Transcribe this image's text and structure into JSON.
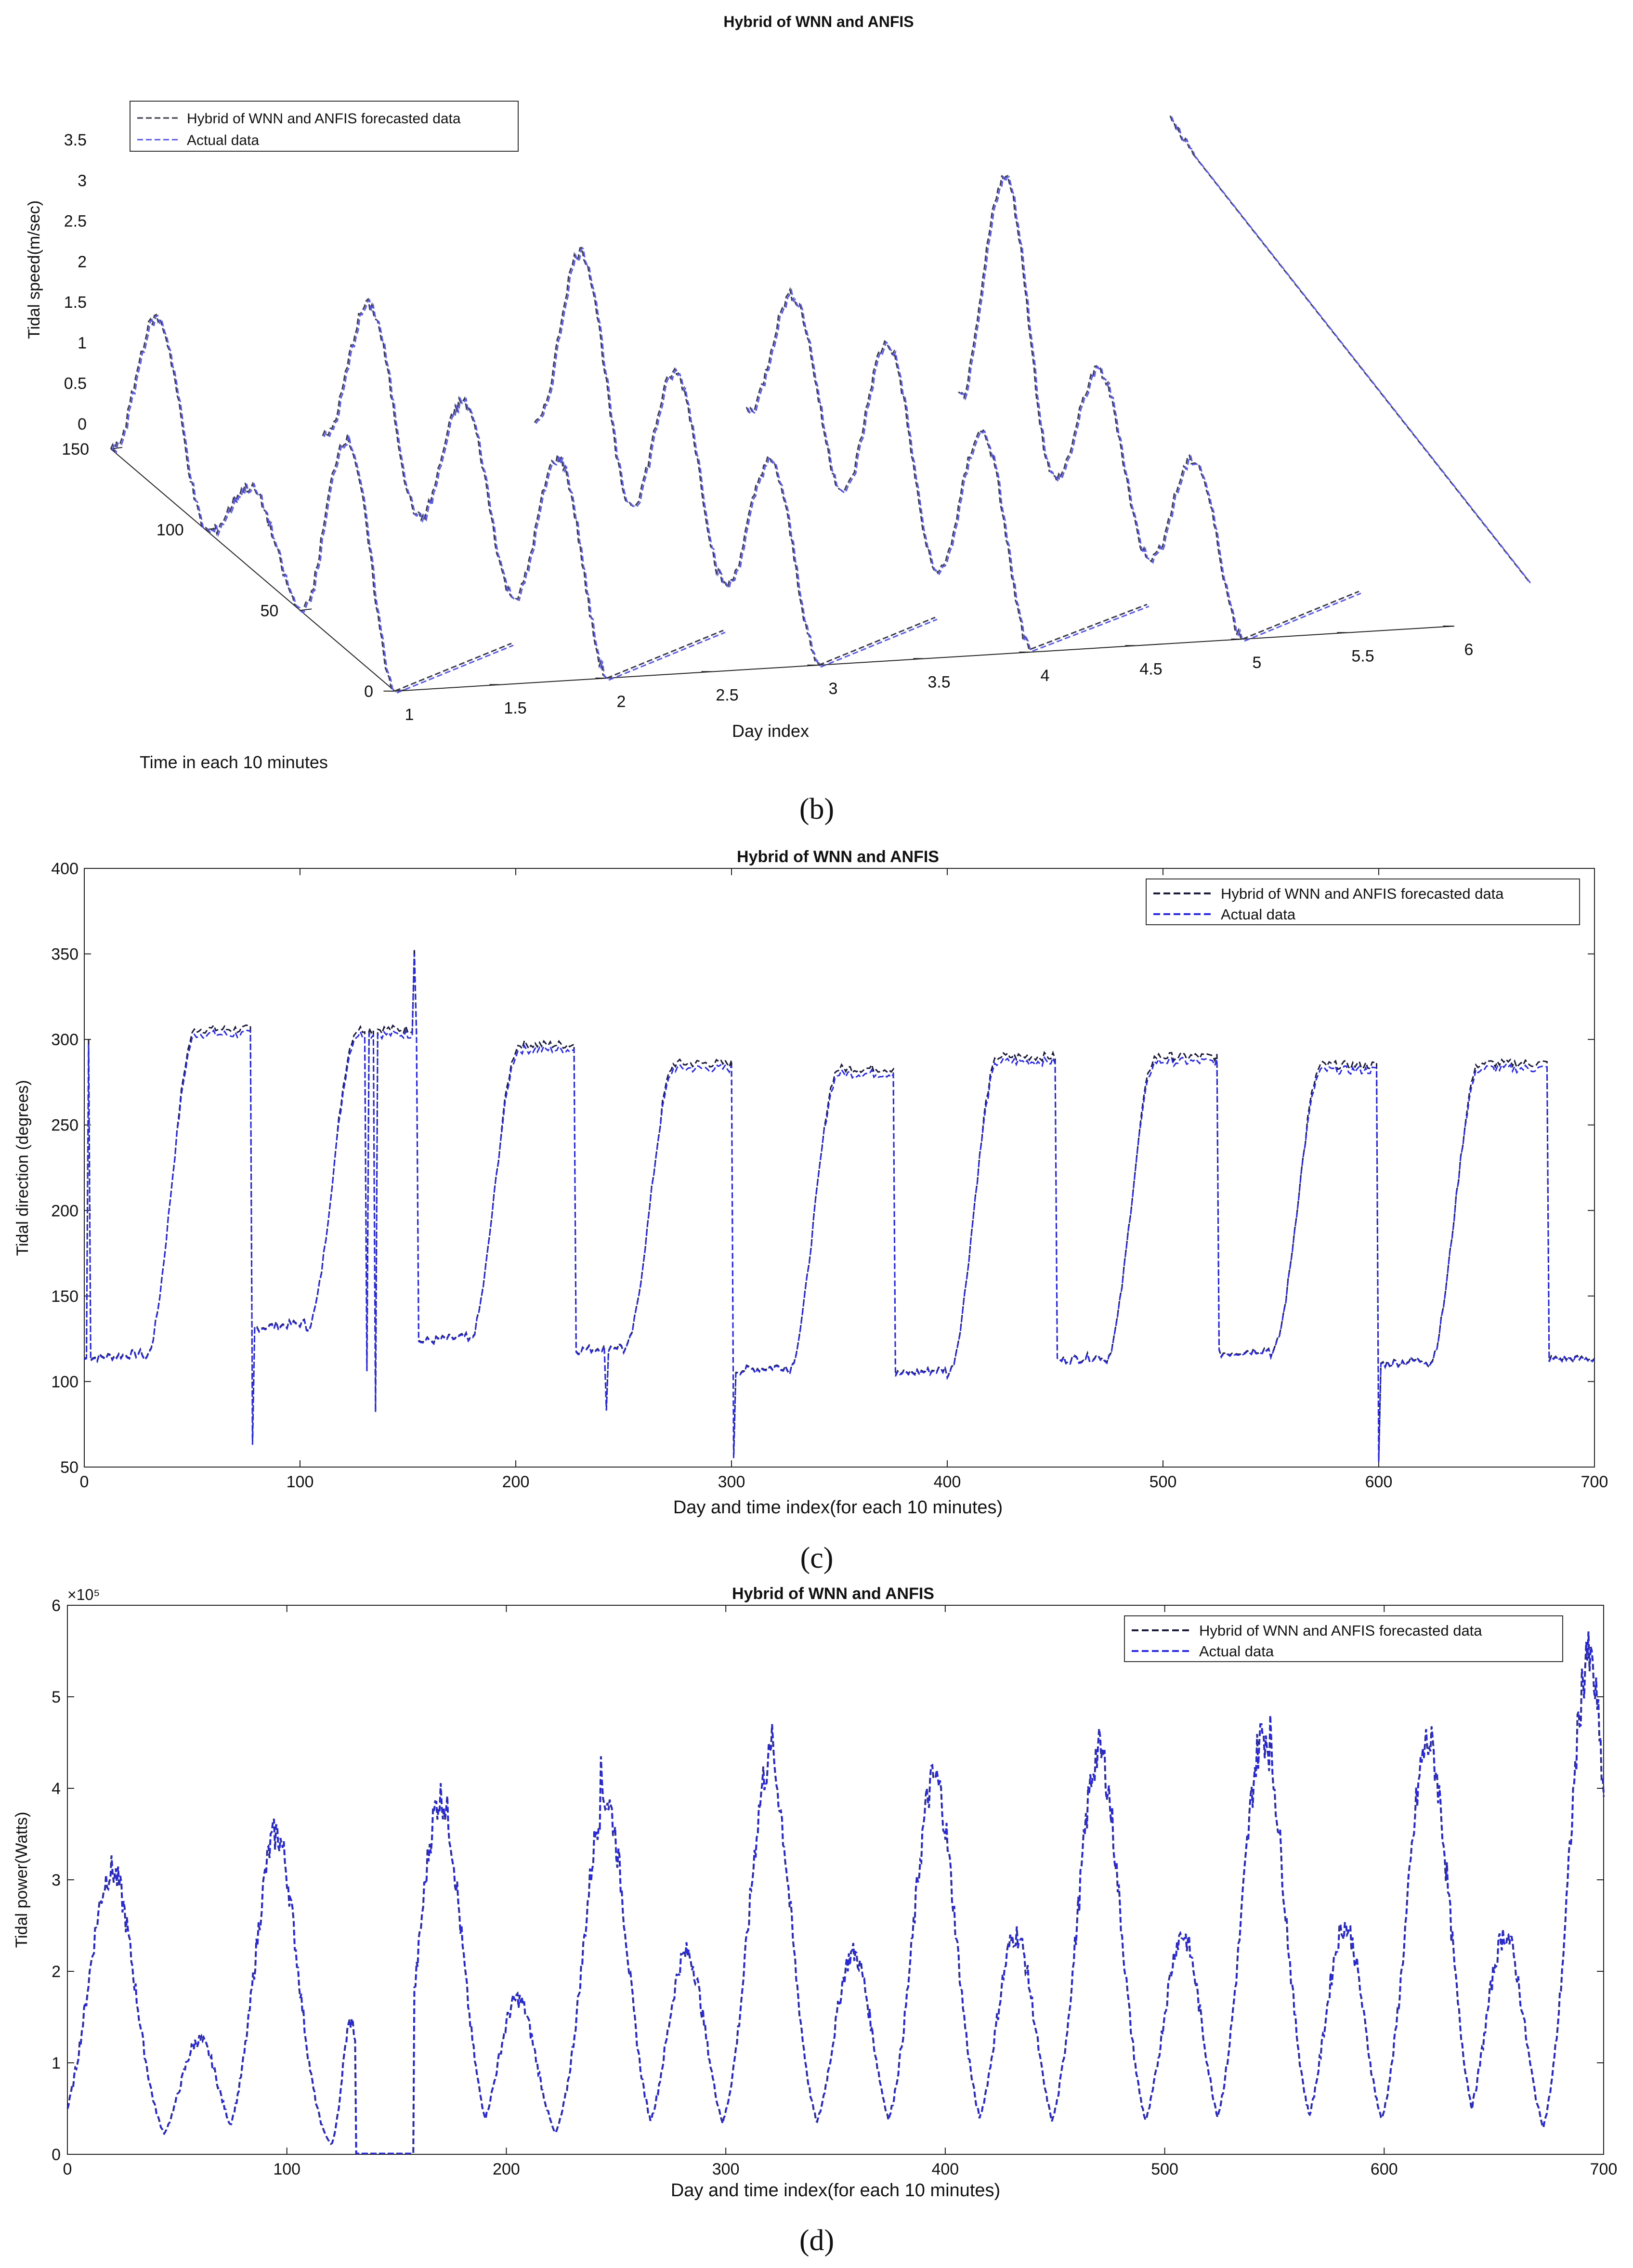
{
  "colors": {
    "forecast": "#1a1a3a",
    "actual": "#2b2bdd",
    "forecast_b": "#3a3a4a",
    "actual_b": "#5a5ae8",
    "axis": "#222222",
    "grid": "#bbbbbb"
  },
  "panels": {
    "b_label": "(b)",
    "c_label": "(c)",
    "d_label": "(d)"
  },
  "chart_data": [
    {
      "id": "b",
      "type": "line",
      "projection": "3d",
      "title": "Hybrid of WNN and ANFIS",
      "xlabel": "Day index",
      "ylabel": "Time in each 10 minutes",
      "zlabel": "Tidal speed(m/sec)",
      "x_ticks": [
        "1",
        "1.5",
        "2",
        "2.5",
        "3",
        "3.5",
        "4",
        "4.5",
        "5",
        "5.5",
        "6"
      ],
      "y_ticks": [
        "0",
        "50",
        "100",
        "150"
      ],
      "z_ticks": [
        "0",
        "0.5",
        "1",
        "1.5",
        "2",
        "2.5",
        "3",
        "3.5"
      ],
      "xlim": [
        1,
        6
      ],
      "ylim": [
        0,
        150
      ],
      "zlim": [
        0,
        3.5
      ],
      "legend": [
        "Hybrid of WNN and ANFIS forecasted data",
        "Actual data"
      ],
      "legend_position": "top-left",
      "days": [
        1,
        2,
        3,
        4,
        5,
        6
      ],
      "peaks_per_day": [
        [
          2.1,
          1.0,
          2.6
        ],
        [
          2.1,
          1.9,
          2.2
        ],
        [
          2.6,
          2.1,
          2.0
        ],
        [
          1.9,
          2.3,
          2.2
        ],
        [
          3.2,
          1.8,
          1.7
        ],
        [
          3.3
        ]
      ]
    },
    {
      "id": "c",
      "type": "line",
      "title": "Hybrid of WNN and ANFIS",
      "xlabel": "Day and time index(for each 10 minutes)",
      "ylabel": "Tidal direction (degrees)",
      "xlim": [
        0,
        700
      ],
      "ylim": [
        50,
        400
      ],
      "x_ticks": [
        "0",
        "100",
        "200",
        "300",
        "400",
        "500",
        "600",
        "700"
      ],
      "y_ticks": [
        "50",
        "100",
        "150",
        "200",
        "250",
        "300",
        "350",
        "400"
      ],
      "legend": [
        "Hybrid of WNN and ANFIS forecasted data",
        "Actual data"
      ],
      "legend_position": "top-right",
      "cycles": [
        {
          "start": 0,
          "low": 113,
          "high": 303,
          "rise": 40
        },
        {
          "start": 78,
          "low": 131,
          "high": 303,
          "rise": 115
        },
        {
          "start": 155,
          "low": 123,
          "high": 294,
          "rise": 190
        },
        {
          "start": 228,
          "low": 118,
          "high": 283,
          "rise": 262
        },
        {
          "start": 302,
          "low": 106,
          "high": 280,
          "rise": 338
        },
        {
          "start": 376,
          "low": 104,
          "high": 287,
          "rise": 412
        },
        {
          "start": 451,
          "low": 112,
          "high": 287,
          "rise": 485
        },
        {
          "start": 526,
          "low": 116,
          "high": 282,
          "rise": 562
        },
        {
          "start": 601,
          "low": 110,
          "high": 283,
          "rise": 635
        }
      ],
      "spikes": [
        [
          2,
          297
        ],
        [
          78,
          63
        ],
        [
          131,
          106
        ],
        [
          135,
          82
        ],
        [
          153,
          350
        ],
        [
          242,
          83
        ],
        [
          301,
          55
        ],
        [
          600,
          53
        ]
      ]
    },
    {
      "id": "d",
      "type": "line",
      "title": "Hybrid of WNN and ANFIS",
      "xlabel": "Day and time index(for each 10 minutes)",
      "ylabel": "Tidal power(Watts)",
      "exponent_label": "×10⁵",
      "xlim": [
        0,
        700
      ],
      "ylim": [
        0,
        6
      ],
      "x_ticks": [
        "0",
        "100",
        "200",
        "300",
        "400",
        "500",
        "600",
        "700"
      ],
      "y_ticks": [
        "0",
        "1",
        "2",
        "3",
        "4",
        "5",
        "6"
      ],
      "legend": [
        "Hybrid of WNN and ANFIS forecasted data",
        "Actual data"
      ],
      "legend_position": "top-right",
      "peaks": [
        {
          "x": 20,
          "y": 3.1,
          "w": 11
        },
        {
          "x": 60,
          "y": 1.25,
          "w": 9
        },
        {
          "x": 95,
          "y": 3.5,
          "w": 10
        },
        {
          "x": 129,
          "y": 1.45,
          "w": 4
        },
        {
          "x": 170,
          "y": 3.9,
          "w": 10
        },
        {
          "x": 205,
          "y": 1.7,
          "w": 9
        },
        {
          "x": 245,
          "y": 3.9,
          "w": 10
        },
        {
          "x": 282,
          "y": 2.2,
          "w": 9
        },
        {
          "x": 320,
          "y": 4.3,
          "w": 10
        },
        {
          "x": 358,
          "y": 2.2,
          "w": 9
        },
        {
          "x": 395,
          "y": 4.1,
          "w": 10
        },
        {
          "x": 432,
          "y": 2.4,
          "w": 9
        },
        {
          "x": 470,
          "y": 4.4,
          "w": 10
        },
        {
          "x": 508,
          "y": 2.4,
          "w": 9
        },
        {
          "x": 545,
          "y": 4.6,
          "w": 10
        },
        {
          "x": 582,
          "y": 2.5,
          "w": 9
        },
        {
          "x": 620,
          "y": 4.5,
          "w": 10
        },
        {
          "x": 655,
          "y": 2.4,
          "w": 9
        },
        {
          "x": 693,
          "y": 5.4,
          "w": 9
        }
      ],
      "spikes": [
        [
          243,
          4.35
        ],
        [
          321,
          4.7
        ],
        [
          548,
          4.8
        ],
        [
          692,
          5.6
        ]
      ]
    }
  ]
}
